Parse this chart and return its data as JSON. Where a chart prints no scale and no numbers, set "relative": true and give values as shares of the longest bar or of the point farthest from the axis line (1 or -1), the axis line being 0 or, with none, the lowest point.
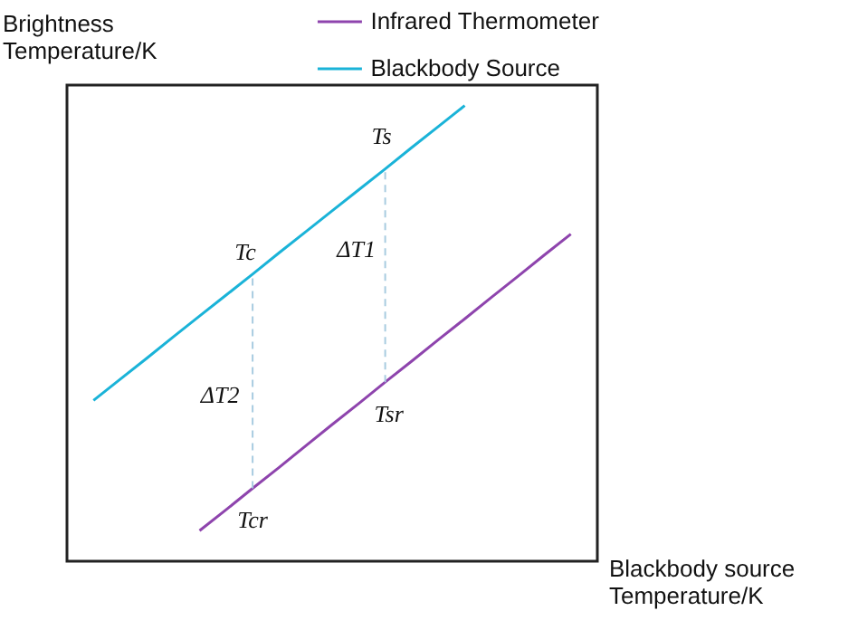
{
  "chart_data": {
    "type": "line",
    "relative": true,
    "xlabel": "Blackbody source Temperature/K",
    "ylabel": "Brightness Temperature/K",
    "legend": "top",
    "marker": "none",
    "line_style": "solid",
    "categories": [
      null,
      null,
      null,
      null,
      null,
      null,
      null,
      null,
      null,
      null,
      null,
      null,
      null,
      null,
      null,
      null,
      null,
      null,
      null
    ],
    "series": [
      {
        "name": "Infrared Thermometer",
        "color": "#8e44ad",
        "values": [
          null,
          null,
          null,
          null,
          0.067,
          0.113,
          0.16,
          0.206,
          0.253,
          0.3,
          0.346,
          0.393,
          0.439,
          0.486,
          0.532,
          0.579,
          0.625,
          0.672,
          0.718
        ]
      },
      {
        "name": "Blackbody Source",
        "color": "#1ab3d8",
        "values": [
          0.353,
          0.399,
          0.445,
          0.492,
          0.538,
          0.584,
          0.63,
          0.677,
          0.723,
          0.769,
          0.815,
          0.861,
          0.908,
          0.954,
          1.0,
          null,
          null,
          null,
          null
        ]
      }
    ],
    "annotations": [
      "Ts",
      "Tc",
      "ΔT1",
      "ΔT2",
      "Tsr",
      "Tcr"
    ]
  }
}
